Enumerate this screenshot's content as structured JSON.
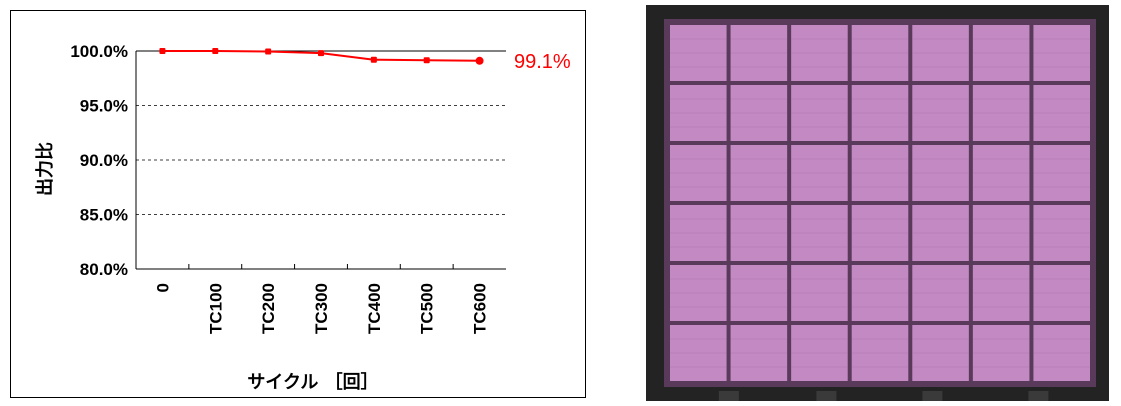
{
  "chart_data": {
    "type": "line",
    "categories": [
      "0",
      "TC100",
      "TC200",
      "TC300",
      "TC400",
      "TC500",
      "TC600"
    ],
    "series": [
      {
        "values": [
          100.0,
          100.0,
          99.95,
          99.8,
          99.2,
          99.15,
          99.1
        ],
        "color": "#ff0000"
      }
    ],
    "ylim": [
      80,
      100
    ],
    "yticks": [
      "80.0%",
      "85.0%",
      "90.0%",
      "95.0%",
      "100.0%"
    ],
    "ylabel": "出力比",
    "xlabel": "サイクル ［回］",
    "end_label": "99.1%",
    "grid": "horizontal dashed",
    "legend": "none"
  },
  "photo": {
    "module_color": "#c389c3",
    "frame_color": "#232323",
    "grid": {
      "columns": 7,
      "rows": 6
    }
  }
}
